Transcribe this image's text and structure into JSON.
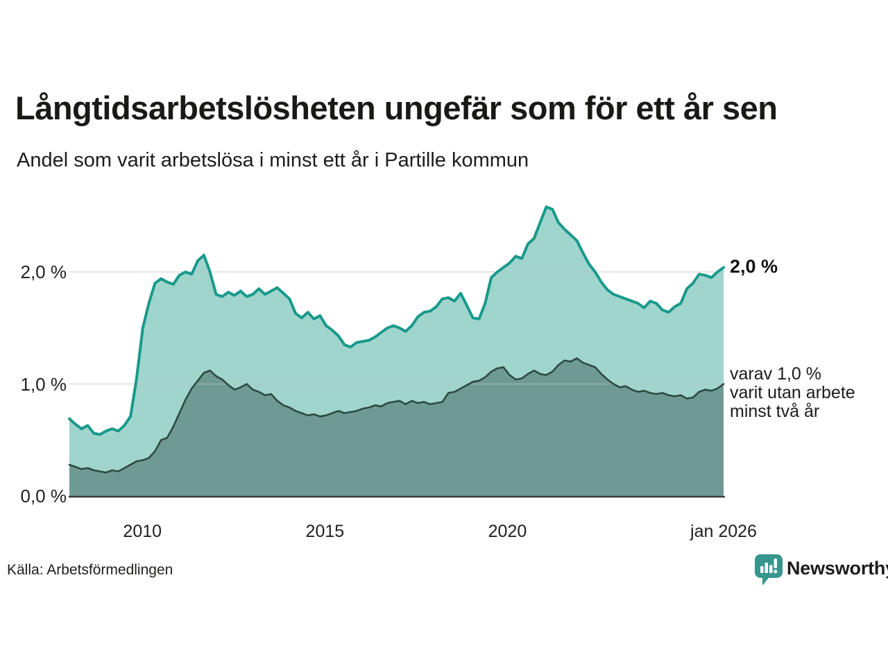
{
  "header": {
    "title": "Långtidsarbetslösheten ungefär som för ett år sen",
    "subtitle": "Andel som varit arbetslösa i minst ett år i Partille kommun"
  },
  "footer": {
    "source": "Källa: Arbetsförmedlingen",
    "brand": "Newsworthy"
  },
  "colors": {
    "line_primary": "#18998b",
    "fill_primary": "#a0d5cd",
    "line_secondary": "#2b4942",
    "fill_secondary": "#6f9a94",
    "gridline": "#bdbdbd",
    "baseline": "#3d3d3d",
    "brand_teal": "#37968e",
    "text": "#1c1c1c"
  },
  "chart_data": {
    "type": "area",
    "title": "Långtidsarbetslösheten ungefär som för ett år sen",
    "subtitle": "Andel som varit arbetslösa i minst ett år i Partille kommun",
    "xlabel": "",
    "ylabel": "",
    "x_domain": [
      2008.0,
      2025.92
    ],
    "x_step_years": 0.16748,
    "ylim": [
      0,
      2.75
    ],
    "grid": "horizontal",
    "legend_position": "none",
    "y_ticks": [
      {
        "value": 0,
        "label": "0,0 %"
      },
      {
        "value": 1,
        "label": "1,0 %"
      },
      {
        "value": 2,
        "label": "2,0 %"
      }
    ],
    "x_ticks": [
      {
        "year": 2010,
        "label": "2010"
      },
      {
        "year": 2015,
        "label": "2015"
      },
      {
        "year": 2020,
        "label": "2020"
      },
      {
        "year": 2026,
        "label": "jan 2026"
      }
    ],
    "series": [
      {
        "name": "arbetslösa minst ett år",
        "values": [
          0.69,
          0.64,
          0.6,
          0.63,
          0.56,
          0.55,
          0.58,
          0.6,
          0.58,
          0.63,
          0.71,
          1.05,
          1.5,
          1.72,
          1.9,
          1.94,
          1.91,
          1.89,
          1.97,
          2.0,
          1.98,
          2.1,
          2.15,
          2.0,
          1.8,
          1.78,
          1.82,
          1.79,
          1.83,
          1.78,
          1.8,
          1.85,
          1.8,
          1.83,
          1.86,
          1.81,
          1.76,
          1.63,
          1.59,
          1.64,
          1.58,
          1.61,
          1.52,
          1.48,
          1.43,
          1.35,
          1.33,
          1.37,
          1.38,
          1.39,
          1.42,
          1.46,
          1.5,
          1.52,
          1.5,
          1.47,
          1.52,
          1.6,
          1.64,
          1.65,
          1.69,
          1.76,
          1.77,
          1.74,
          1.81,
          1.7,
          1.59,
          1.58,
          1.72,
          1.95,
          2.0,
          2.04,
          2.08,
          2.14,
          2.12,
          2.25,
          2.3,
          2.44,
          2.58,
          2.56,
          2.44,
          2.38,
          2.33,
          2.28,
          2.17,
          2.07,
          2.0,
          1.91,
          1.84,
          1.8,
          1.78,
          1.76,
          1.74,
          1.72,
          1.68,
          1.74,
          1.72,
          1.66,
          1.64,
          1.69,
          1.72,
          1.85,
          1.9,
          1.98,
          1.97,
          1.95,
          2.0,
          2.04
        ]
      },
      {
        "name": "varav utan arbete minst två år",
        "values": [
          0.28,
          0.26,
          0.24,
          0.25,
          0.23,
          0.22,
          0.21,
          0.23,
          0.22,
          0.25,
          0.28,
          0.31,
          0.32,
          0.34,
          0.4,
          0.5,
          0.52,
          0.62,
          0.74,
          0.86,
          0.96,
          1.03,
          1.1,
          1.12,
          1.07,
          1.04,
          0.99,
          0.95,
          0.97,
          1.0,
          0.95,
          0.93,
          0.9,
          0.91,
          0.85,
          0.81,
          0.79,
          0.76,
          0.74,
          0.72,
          0.73,
          0.71,
          0.72,
          0.74,
          0.76,
          0.74,
          0.75,
          0.76,
          0.78,
          0.79,
          0.81,
          0.8,
          0.83,
          0.84,
          0.85,
          0.82,
          0.85,
          0.83,
          0.84,
          0.82,
          0.83,
          0.84,
          0.92,
          0.93,
          0.96,
          0.99,
          1.02,
          1.03,
          1.06,
          1.11,
          1.14,
          1.15,
          1.08,
          1.04,
          1.05,
          1.09,
          1.12,
          1.09,
          1.08,
          1.11,
          1.17,
          1.21,
          1.2,
          1.23,
          1.19,
          1.17,
          1.15,
          1.09,
          1.04,
          1.0,
          0.97,
          0.98,
          0.95,
          0.93,
          0.94,
          0.92,
          0.91,
          0.92,
          0.9,
          0.89,
          0.9,
          0.87,
          0.88,
          0.93,
          0.95,
          0.94,
          0.96,
          1.0
        ]
      }
    ],
    "annotations": {
      "end_value_primary": "2,0 %",
      "end_secondary_lines": [
        "varav 1,0 %",
        "varit utan arbete",
        "minst två år"
      ]
    }
  }
}
